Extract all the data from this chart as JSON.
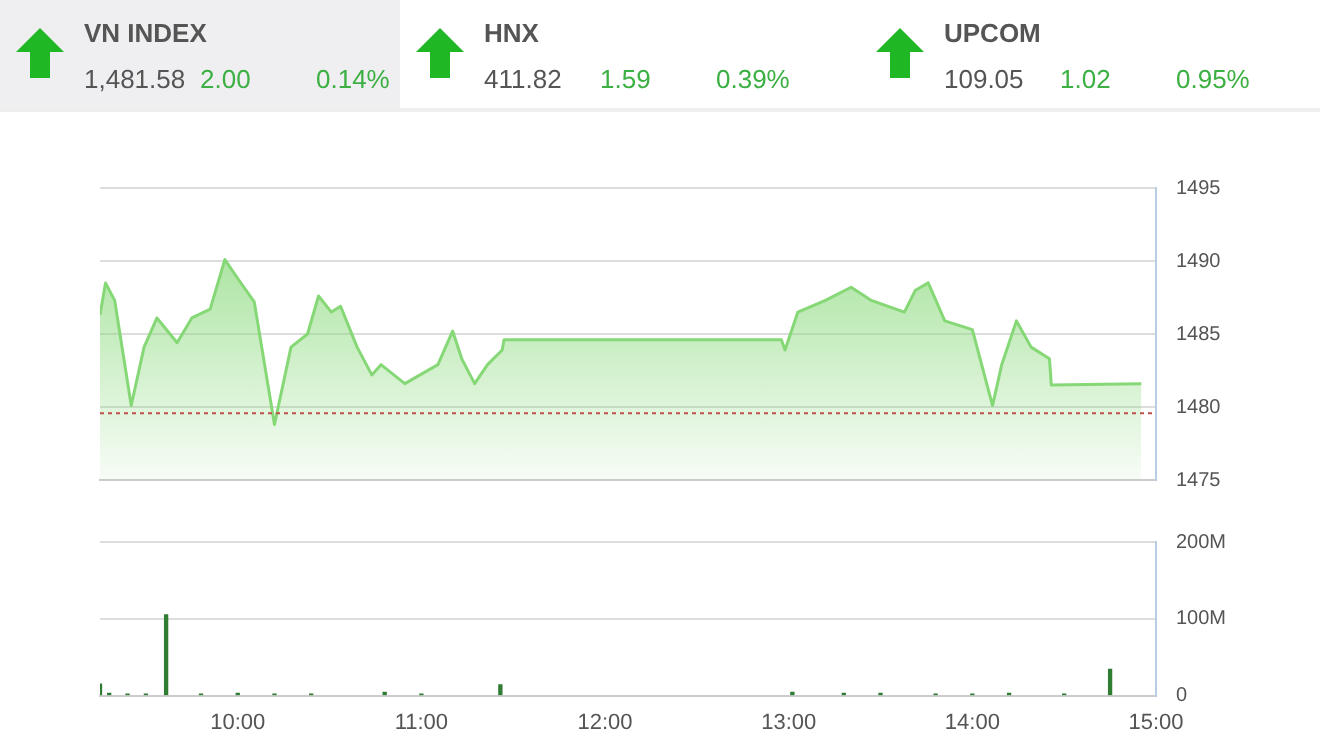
{
  "chart_data": [
    {
      "type": "other",
      "annotations": [
        "VN INDEX",
        "1,481.58",
        "2.00",
        "0.14%",
        "HNX",
        "411.82",
        "1.59",
        "0.39%",
        "UPCOM",
        "109.05",
        "1.02",
        "0.95%"
      ]
    },
    {
      "type": "area",
      "tick_labels": "y",
      "grid": "y",
      "xlim": [
        9.25,
        15
      ],
      "ylim": [
        1475,
        1495
      ],
      "yticks": [
        1475,
        1480,
        1485,
        1490,
        1495
      ],
      "ref_lines": [
        {
          "axis": "y",
          "value": 1479.58,
          "color": "#c0504d",
          "line_style": "dotted"
        }
      ],
      "series": [
        {
          "color": "#86d877",
          "x": [
            9.25,
            9.28,
            9.33,
            9.42,
            9.49,
            9.56,
            9.67,
            9.75,
            9.85,
            9.93,
            10.0,
            10.09,
            10.2,
            10.29,
            10.38,
            10.44,
            10.51,
            10.56,
            10.65,
            10.73,
            10.78,
            10.91,
            11.09,
            11.17,
            11.22,
            11.29,
            11.36,
            11.44,
            11.45,
            12.96,
            12.98,
            13.05,
            13.2,
            13.34,
            13.45,
            13.63,
            13.69,
            13.76,
            13.85,
            14.0,
            14.11,
            14.16,
            14.24,
            14.32,
            14.42,
            14.43,
            14.92
          ],
          "values": [
            1486.3,
            1488.5,
            1487.3,
            1480.1,
            1484.1,
            1486.1,
            1484.4,
            1486.1,
            1486.7,
            1490.1,
            1488.8,
            1487.2,
            1478.8,
            1484.1,
            1485.0,
            1487.6,
            1486.5,
            1486.9,
            1484.1,
            1482.2,
            1482.9,
            1481.6,
            1482.9,
            1485.2,
            1483.3,
            1481.6,
            1482.9,
            1483.9,
            1484.6,
            1484.6,
            1483.9,
            1486.5,
            1487.3,
            1488.2,
            1487.3,
            1486.5,
            1488.0,
            1488.5,
            1485.9,
            1485.3,
            1480.1,
            1482.9,
            1485.9,
            1484.1,
            1483.3,
            1481.5,
            1481.6
          ]
        }
      ]
    },
    {
      "type": "bar",
      "grid": "y",
      "xlim": [
        9.25,
        15
      ],
      "xticks": [
        {
          "value": 10,
          "label": "10:00"
        },
        {
          "value": 11,
          "label": "11:00"
        },
        {
          "value": 12,
          "label": "12:00"
        },
        {
          "value": 13,
          "label": "13:00"
        },
        {
          "value": 14,
          "label": "14:00"
        },
        {
          "value": 15,
          "label": "15:00"
        }
      ],
      "ylim": [
        0,
        200
      ],
      "yticks": [
        {
          "value": 0,
          "label": "0"
        },
        {
          "value": 100,
          "label": "100M"
        },
        {
          "value": 200,
          "label": "200M"
        }
      ],
      "series": [
        {
          "color": "#2e7d32",
          "x": [
            9.25,
            9.3,
            9.4,
            9.5,
            9.61,
            9.8,
            10.0,
            10.2,
            10.4,
            10.8,
            11.0,
            11.43,
            13.02,
            13.3,
            13.5,
            13.8,
            14.0,
            14.2,
            14.5,
            14.75
          ],
          "values": [
            15,
            3,
            2,
            2,
            105,
            2,
            3,
            2,
            2,
            4,
            2,
            14,
            4,
            3,
            3,
            2,
            2,
            3,
            2,
            34
          ]
        }
      ]
    }
  ]
}
